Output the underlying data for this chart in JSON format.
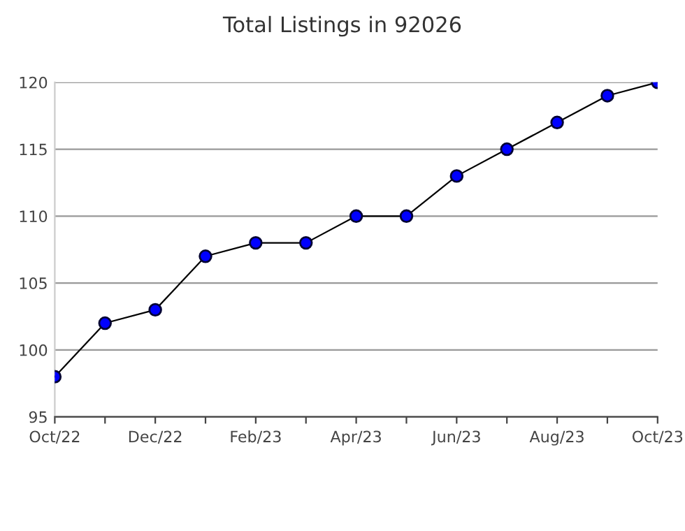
{
  "chart_data": {
    "type": "line",
    "title": "Total Listings in 92026",
    "categories": [
      "Oct/22",
      null,
      "Dec/22",
      null,
      "Feb/23",
      null,
      "Apr/23",
      null,
      "Jun/23",
      null,
      "Aug/23",
      null,
      "Oct/23"
    ],
    "series": [
      {
        "color": "#0000ff",
        "values": [
          98,
          102,
          103,
          107,
          108,
          108,
          110,
          110,
          113,
          115,
          117,
          119,
          120
        ]
      }
    ],
    "ylim": [
      95,
      120
    ],
    "yticks": [
      95,
      100,
      105,
      110,
      115,
      120
    ],
    "grid": "y",
    "marker": "circle",
    "line_style": "solid"
  }
}
